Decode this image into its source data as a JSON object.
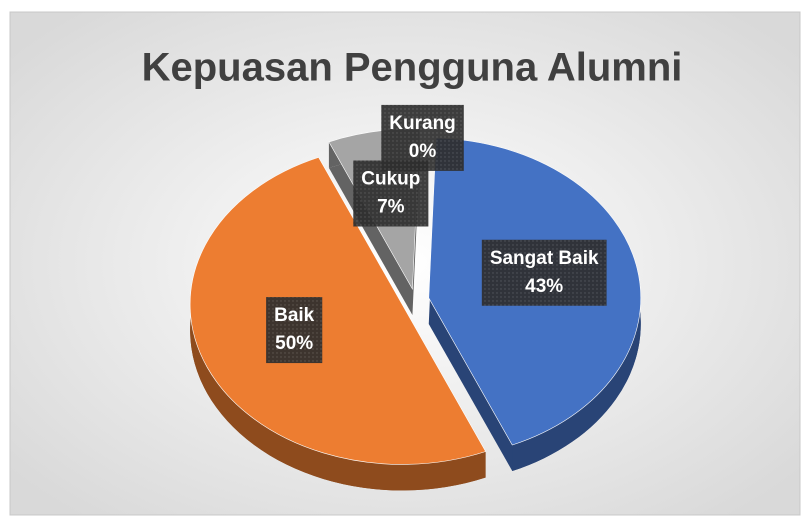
{
  "chart_data": {
    "type": "pie",
    "title": "Kepuasan Pengguna Alumni",
    "categories": [
      "Sangat Baik",
      "Baik",
      "Cukup",
      "Kurang"
    ],
    "values": [
      43,
      50,
      7,
      0
    ],
    "value_labels": [
      "43%",
      "50%",
      "7%",
      "0%"
    ],
    "colors": [
      "#4472c4",
      "#ed7d31",
      "#a5a5a5",
      "#ffc000"
    ]
  }
}
